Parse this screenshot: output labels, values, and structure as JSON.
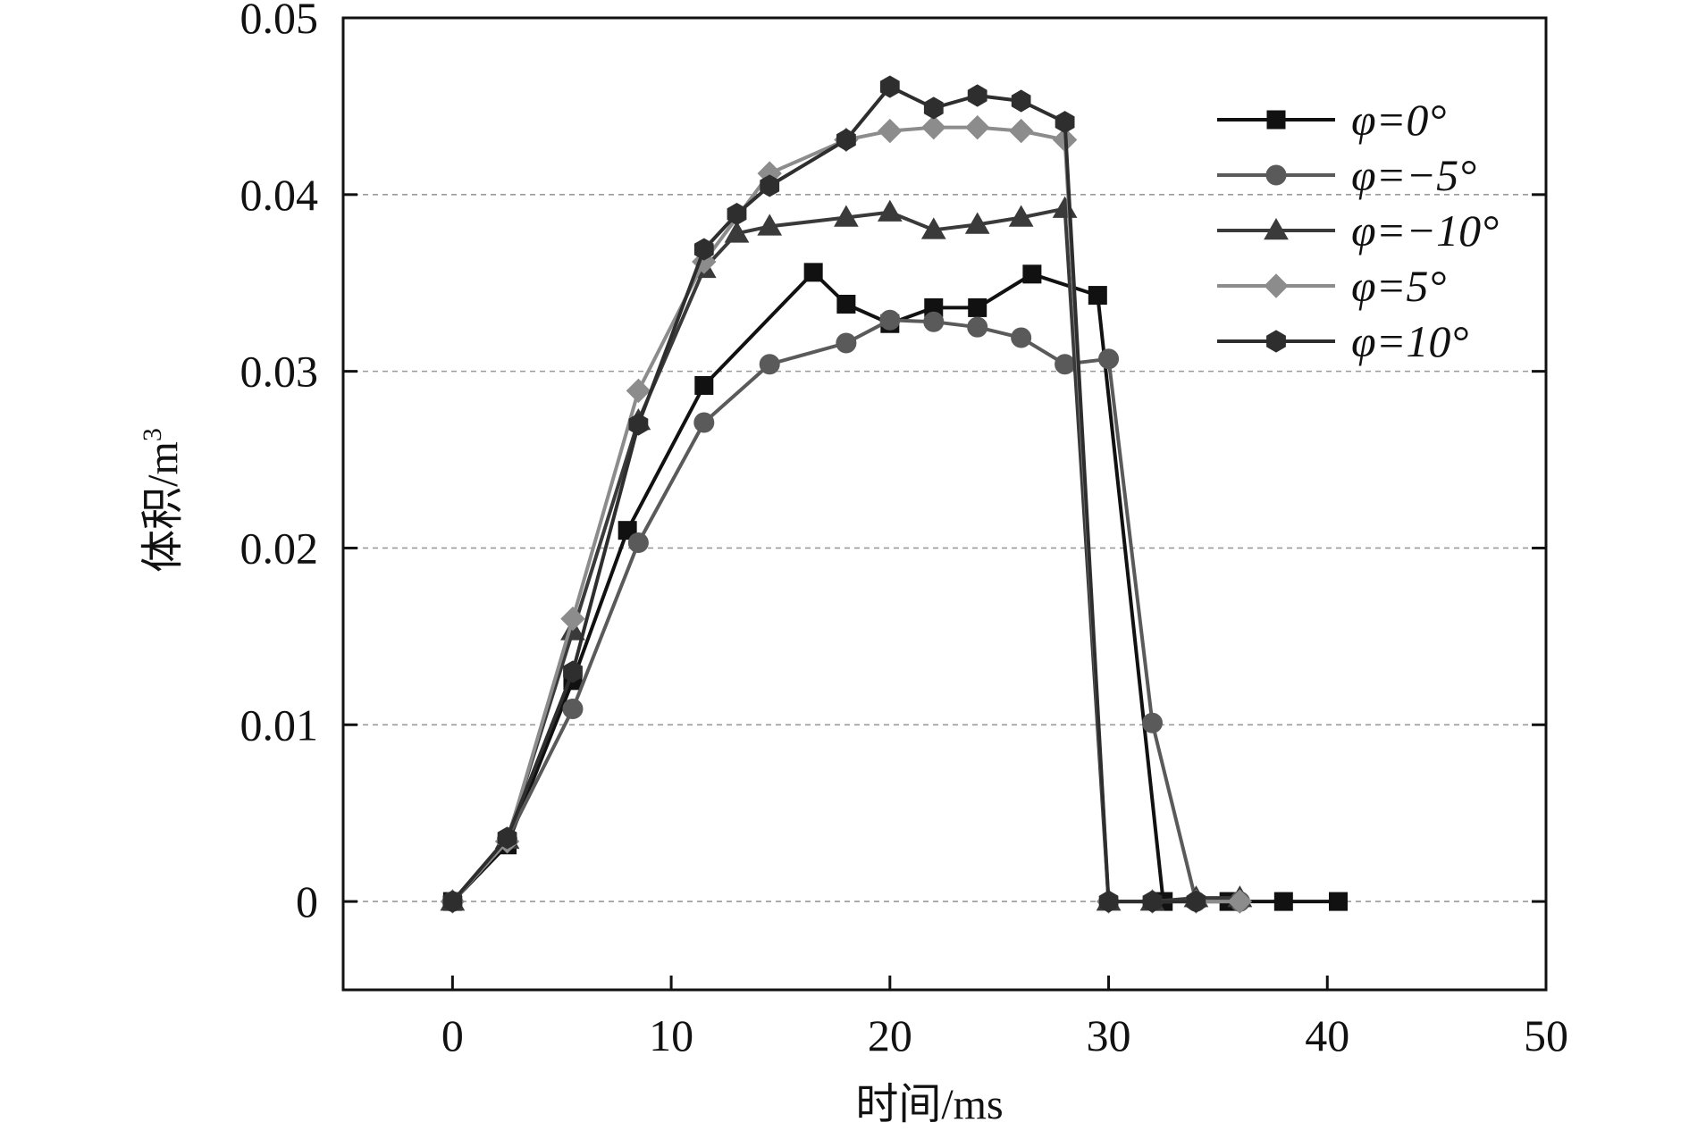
{
  "chart_data": {
    "type": "line",
    "title": "",
    "xlabel": "时间/ms",
    "ylabel": "体积/m³",
    "xlim": [
      -5,
      50
    ],
    "ylim": [
      -0.005,
      0.05
    ],
    "xticks": [
      0,
      10,
      20,
      30,
      40,
      50
    ],
    "xtick_labels": [
      "0",
      "10",
      "20",
      "30",
      "40",
      "50"
    ],
    "yticks": [
      0,
      0.01,
      0.02,
      0.03,
      0.04,
      0.05
    ],
    "ytick_labels": [
      "0",
      "0.01",
      "0.02",
      "0.03",
      "0.04",
      "0.05"
    ],
    "grid": "horizontal dashed",
    "legend_position": "top-right",
    "series": [
      {
        "name": "φ=0°",
        "color": "#111111",
        "marker": "square",
        "x": [
          0,
          2.5,
          5.5,
          8,
          11.5,
          16.5,
          18,
          20,
          22,
          24,
          26.5,
          29.5,
          32.5,
          35.5,
          38,
          40.5
        ],
        "y": [
          0,
          0.0032,
          0.0125,
          0.021,
          0.0292,
          0.0356,
          0.0338,
          0.0327,
          0.0336,
          0.0336,
          0.0355,
          0.0343,
          0,
          0,
          0,
          0
        ]
      },
      {
        "name": "φ=−5°",
        "color": "#5a5a5a",
        "marker": "circle",
        "x": [
          0,
          2.5,
          5.5,
          8.5,
          11.5,
          14.5,
          18,
          20,
          22,
          24,
          26,
          28,
          30,
          32,
          34,
          36
        ],
        "y": [
          0,
          0.0035,
          0.0109,
          0.0203,
          0.0271,
          0.0304,
          0.0316,
          0.0329,
          0.0328,
          0.0325,
          0.0319,
          0.0304,
          0.0307,
          0.0101,
          0,
          0
        ]
      },
      {
        "name": "φ=−10°",
        "color": "#3a3a3a",
        "marker": "triangle",
        "x": [
          0,
          2.5,
          5.5,
          8.5,
          11.5,
          13,
          14.5,
          18,
          20,
          22,
          24,
          26,
          28,
          30,
          32,
          34,
          36
        ],
        "y": [
          0,
          0.0035,
          0.0153,
          0.0272,
          0.0358,
          0.0378,
          0.0382,
          0.0387,
          0.039,
          0.038,
          0.0383,
          0.0387,
          0.0392,
          0,
          0,
          0.0002,
          0.0002
        ]
      },
      {
        "name": "φ=5°",
        "color": "#8c8c8c",
        "marker": "diamond",
        "x": [
          0,
          2.5,
          5.5,
          8.5,
          11.5,
          14.5,
          18,
          20,
          22,
          24,
          26,
          28,
          30,
          32,
          34,
          36
        ],
        "y": [
          0,
          0.0034,
          0.016,
          0.0289,
          0.0362,
          0.0412,
          0.0431,
          0.0436,
          0.0438,
          0.0438,
          0.0436,
          0.0431,
          0,
          0,
          0,
          0
        ]
      },
      {
        "name": "φ=10°",
        "color": "#2e2e2e",
        "marker": "hexagon",
        "x": [
          0,
          2.5,
          5.5,
          8.5,
          11.5,
          13,
          14.5,
          18,
          20,
          22,
          24,
          26,
          28,
          30,
          32,
          34
        ],
        "y": [
          0,
          0.0036,
          0.013,
          0.027,
          0.0369,
          0.0389,
          0.0405,
          0.0431,
          0.0461,
          0.0449,
          0.0456,
          0.0453,
          0.0441,
          0,
          0,
          0
        ]
      }
    ]
  }
}
